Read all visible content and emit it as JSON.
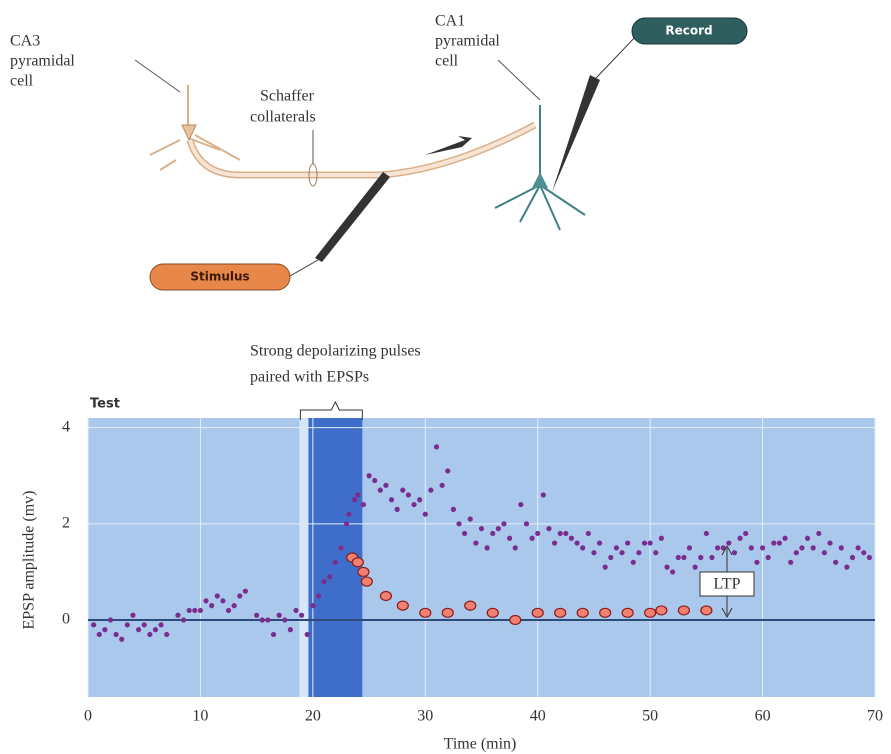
{
  "diagram": {
    "ca3_label": [
      "CA3",
      "pyramidal",
      "cell"
    ],
    "ca1_label": [
      "CA1",
      "pyramidal",
      "cell"
    ],
    "schaffer_label": [
      "Schaffer",
      "collaterals"
    ],
    "record": "Record",
    "stimulus": "Stimulus"
  },
  "chart_data": {
    "type": "scatter",
    "annotation": [
      "Strong depolarizing pulses",
      "paired with EPSPs"
    ],
    "corner_label": "Test",
    "ltp_label": "LTP",
    "x_label": "Time (min)",
    "y_label": "EPSP amplitude (mv)",
    "xlim": [
      0,
      70
    ],
    "xticks": [
      0,
      10,
      20,
      30,
      40,
      50,
      60,
      70
    ],
    "ylim": [
      -1.6,
      4.2
    ],
    "yticks": [
      0,
      2,
      4
    ],
    "grid": true,
    "shaded_span": [
      19.6,
      24.4
    ],
    "series": [
      {
        "color": "#7b2d8e",
        "marker": "dot",
        "x": [
          0.5,
          1,
          1.5,
          2,
          2.5,
          3,
          3.5,
          4,
          4.5,
          5,
          5.5,
          6,
          6.5,
          7,
          8,
          8.5,
          9,
          9.5,
          10,
          10.5,
          11,
          11.5,
          12,
          12.5,
          13,
          13.5,
          14,
          15,
          15.5,
          16,
          16.5,
          17,
          17.5,
          18,
          18.5,
          19,
          19.5,
          20,
          20.5,
          21,
          21.5,
          22,
          22.5,
          23,
          23.2,
          23.7,
          24,
          24.5,
          25,
          25.5,
          26,
          26.5,
          27,
          27.5,
          28,
          28.5,
          29,
          29.5,
          30,
          30.5,
          31,
          31.5,
          32,
          32.5,
          33,
          33.5,
          34,
          34.5,
          35,
          35.5,
          36,
          36.5,
          37,
          37.5,
          38,
          38.5,
          39,
          39.5,
          40,
          40.5,
          41,
          41.5,
          42,
          42.5,
          43,
          43.5,
          44,
          44.5,
          45,
          45.5,
          46,
          46.5,
          47,
          47.5,
          48,
          48.5,
          49,
          49.5,
          50,
          50.5,
          51,
          51.5,
          52,
          52.5,
          53,
          53.5,
          54,
          54.5,
          55,
          55.5,
          56,
          56.5,
          57,
          57.5,
          58,
          58.5,
          59,
          59.5,
          60,
          60.5,
          61,
          61.5,
          62,
          62.5,
          63,
          63.5,
          64,
          64.5,
          65,
          65.5,
          66,
          66.5,
          67,
          67.5,
          68,
          68.5,
          69,
          69.5
        ],
        "values": [
          -0.1,
          -0.3,
          -0.2,
          0,
          -0.3,
          -0.4,
          -0.1,
          0.1,
          -0.2,
          -0.1,
          -0.3,
          -0.2,
          -0.1,
          -0.3,
          0.1,
          0,
          0.2,
          0.2,
          0.2,
          0.4,
          0.3,
          0.5,
          0.4,
          0.2,
          0.3,
          0.5,
          0.6,
          0.1,
          0,
          0,
          -0.3,
          0.1,
          0,
          -0.2,
          0.2,
          0.1,
          -0.3,
          0.3,
          0.5,
          0.8,
          0.9,
          1.2,
          1.5,
          2.0,
          2.2,
          2.5,
          2.6,
          2.4,
          3.0,
          2.9,
          2.7,
          2.8,
          2.5,
          2.3,
          2.7,
          2.6,
          2.4,
          2.5,
          2.2,
          2.7,
          3.6,
          2.8,
          3.1,
          2.3,
          2.0,
          1.8,
          2.1,
          1.6,
          1.9,
          1.5,
          1.8,
          1.9,
          2.0,
          1.7,
          1.5,
          2.4,
          2.0,
          1.7,
          1.8,
          2.6,
          1.9,
          1.6,
          1.8,
          1.8,
          1.7,
          1.6,
          1.5,
          1.8,
          1.4,
          1.6,
          1.1,
          1.3,
          1.5,
          1.4,
          1.6,
          1.2,
          1.4,
          1.6,
          1.6,
          1.4,
          1.7,
          1.1,
          1.0,
          1.3,
          1.3,
          1.5,
          1.1,
          1.3,
          1.8,
          1.3,
          1.5,
          1.5,
          1.6,
          1.4,
          1.7,
          1.8,
          1.5,
          1.2,
          1.5,
          1.3,
          1.6,
          1.6,
          1.7,
          1.2,
          1.4,
          1.5,
          1.7,
          1.5,
          1.8,
          1.4,
          1.6,
          1.2,
          1.5,
          1.1,
          1.3,
          1.5,
          1.4,
          1.3
        ]
      },
      {
        "color": "#f08070",
        "marker": "ring",
        "x": [
          23.5,
          24,
          24.5,
          24.8,
          26.5,
          28,
          30,
          32,
          34,
          36,
          38,
          40,
          42,
          44,
          46,
          48,
          50,
          51,
          53,
          55
        ],
        "values": [
          1.3,
          1.2,
          1.0,
          0.8,
          0.5,
          0.3,
          0.15,
          0.15,
          0.3,
          0.15,
          0,
          0.15,
          0.15,
          0.15,
          0.15,
          0.15,
          0.15,
          0.2,
          0.2,
          0.2
        ]
      }
    ]
  }
}
